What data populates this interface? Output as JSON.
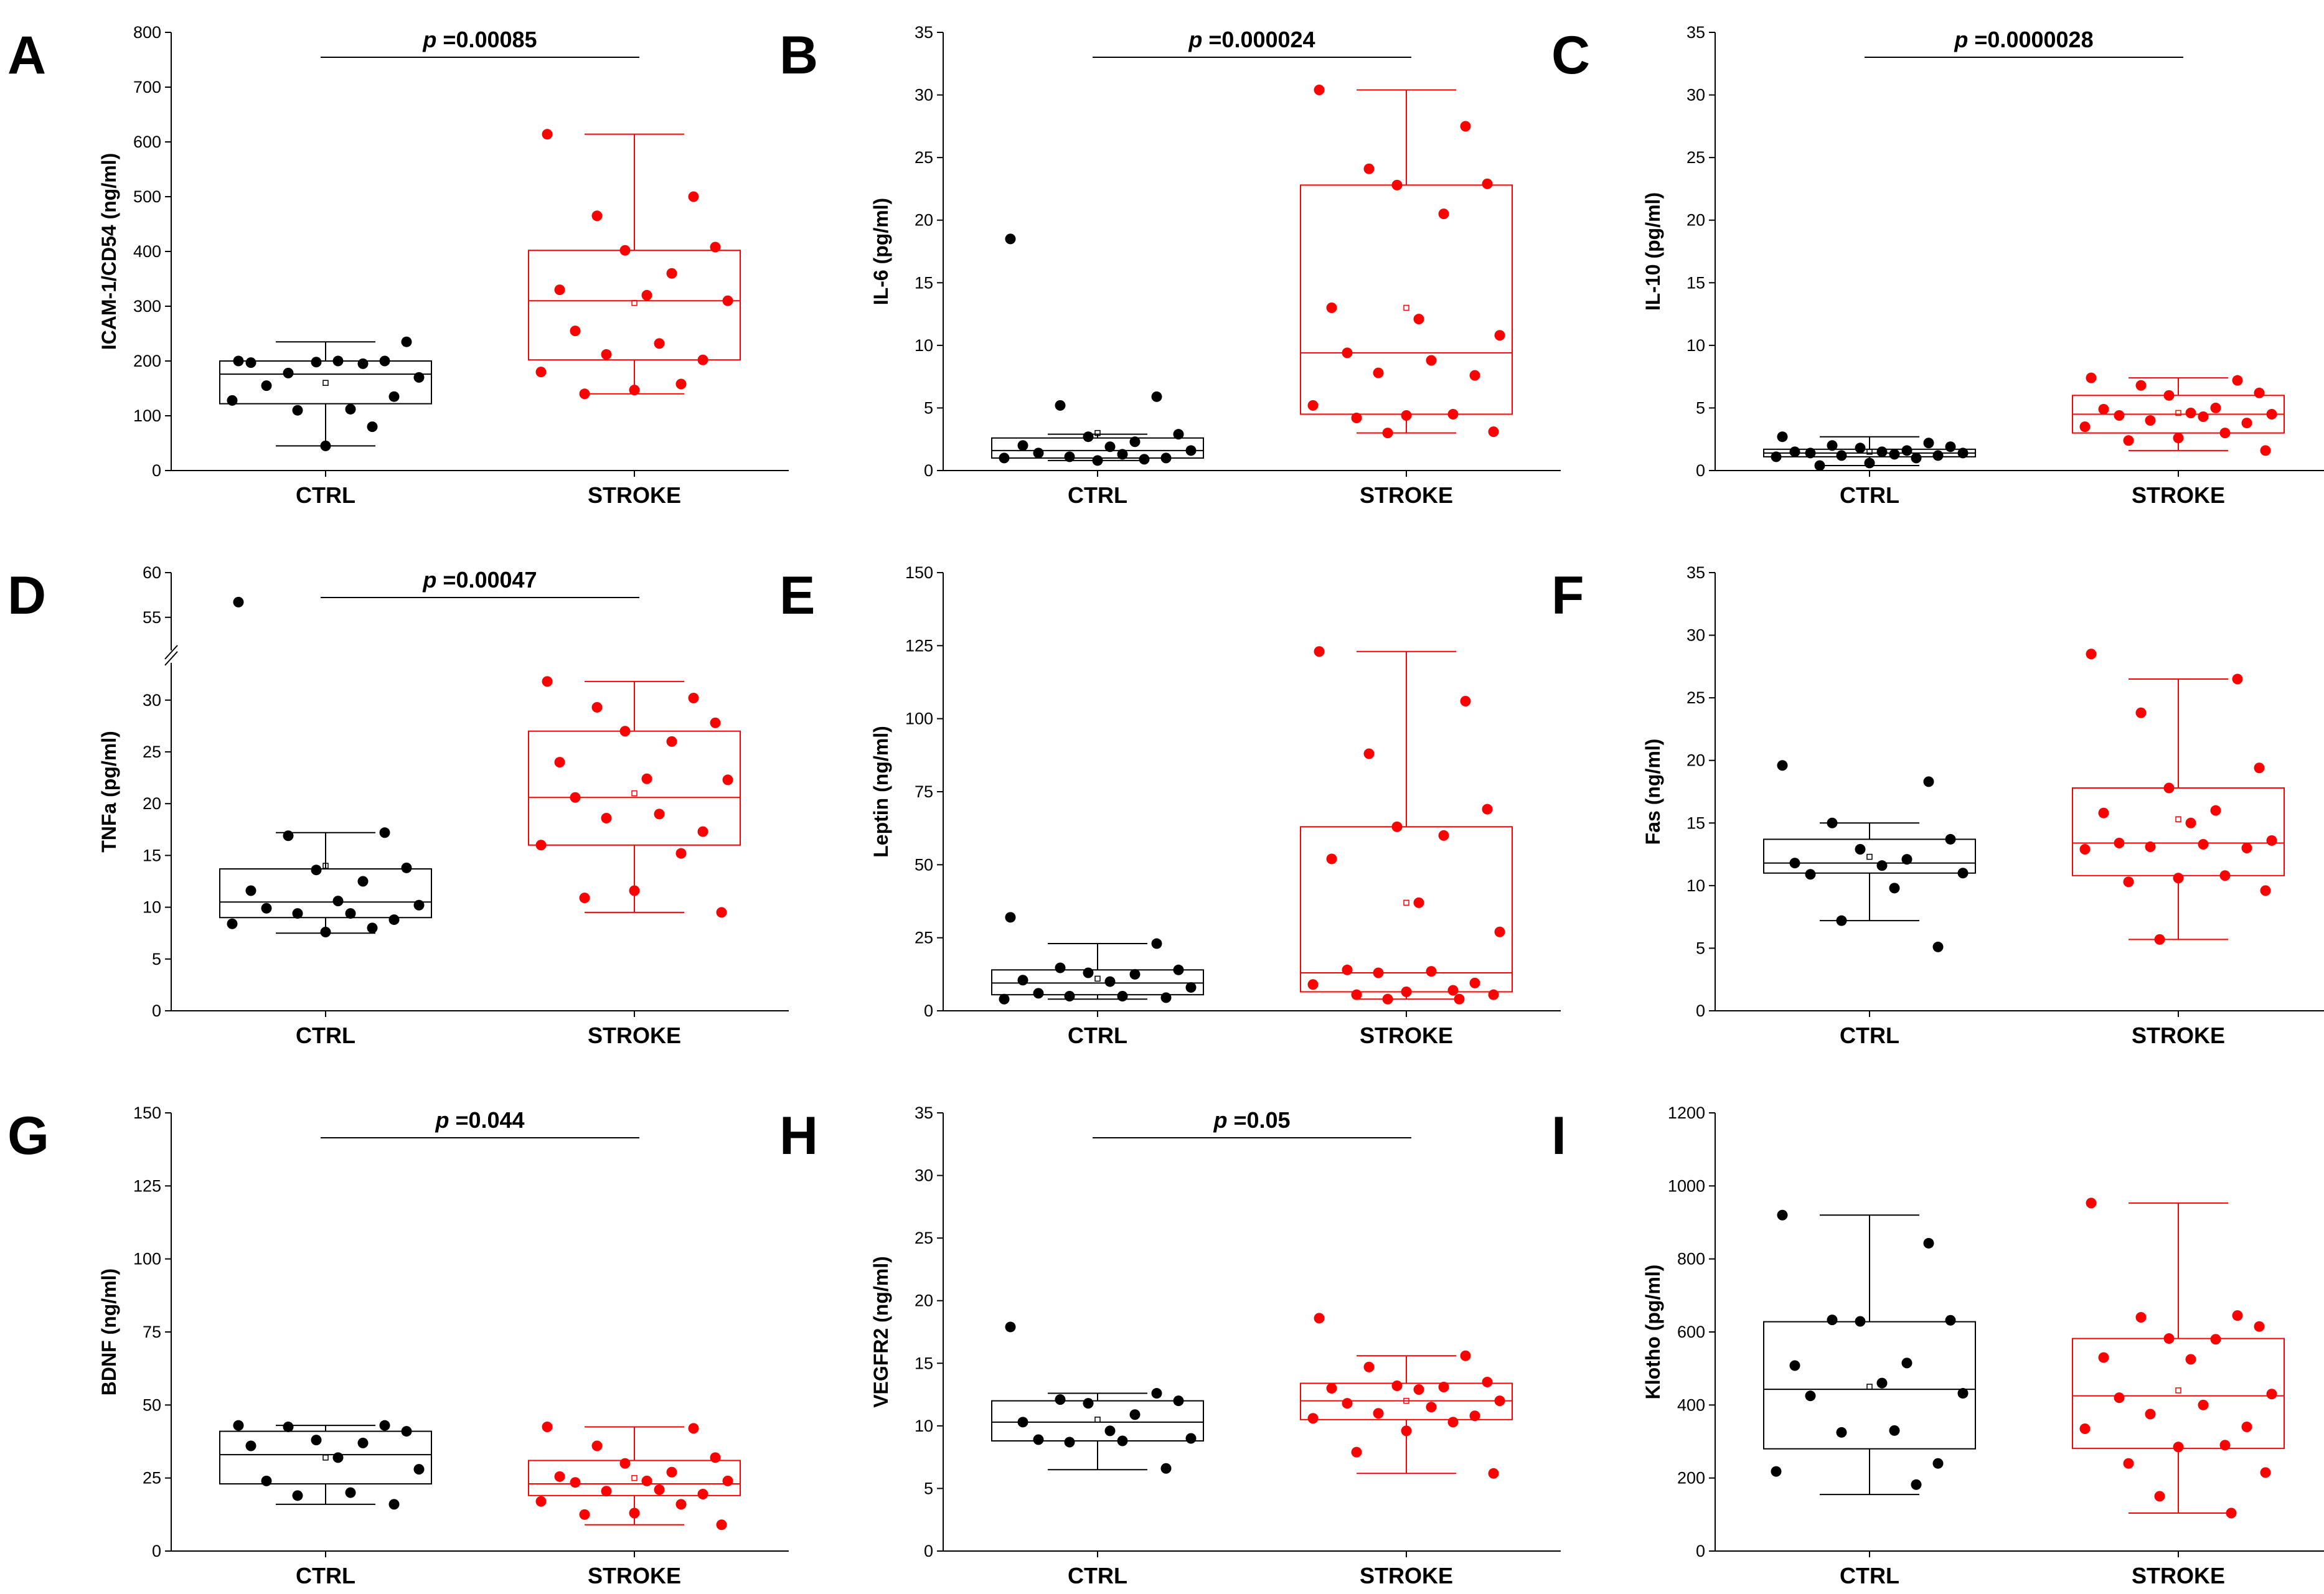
{
  "figure": {
    "colors": {
      "ctrl": "#000000",
      "stroke": "#ff0000"
    }
  },
  "chart_data": [
    {
      "panel": "A",
      "type": "box",
      "ylabel": "ICAM-1/CD54 (ng/ml)",
      "ylim": [
        0,
        800
      ],
      "yticks": [
        0,
        100,
        200,
        300,
        400,
        500,
        600,
        700,
        800
      ],
      "categories": [
        "CTRL",
        "STROKE"
      ],
      "p_label": "p",
      "p_value": "=0.00085",
      "groups": [
        {
          "name": "CTRL",
          "color": "#000000",
          "whisker_low": 45,
          "q1": 122,
          "median": 176,
          "q3": 200,
          "whisker_high": 235,
          "mean": 160,
          "points": [
            200,
            200,
            178,
            235,
            198,
            195,
            197,
            200,
            170,
            155,
            112,
            110,
            135,
            128,
            80,
            45
          ]
        },
        {
          "name": "STROKE",
          "color": "#ff0000",
          "whisker_low": 140,
          "q1": 202,
          "median": 310,
          "q3": 402,
          "whisker_high": 614,
          "mean": 306,
          "points": [
            614,
            500,
            465,
            408,
            402,
            360,
            330,
            320,
            310,
            255,
            232,
            212,
            202,
            180,
            158,
            147,
            140
          ]
        }
      ]
    },
    {
      "panel": "B",
      "type": "box",
      "ylabel": "IL-6 (pg/ml)",
      "ylim": [
        0,
        35
      ],
      "yticks": [
        0,
        5,
        10,
        15,
        20,
        25,
        30,
        35
      ],
      "categories": [
        "CTRL",
        "STROKE"
      ],
      "p_label": "p",
      "p_value": "=0.000024",
      "groups": [
        {
          "name": "CTRL",
          "color": "#000000",
          "whisker_low": 0.8,
          "q1": 1.0,
          "median": 1.6,
          "q3": 2.6,
          "whisker_high": 2.9,
          "mean": 3.0,
          "points": [
            18.5,
            5.9,
            5.2,
            2.9,
            2.7,
            2.3,
            2.0,
            1.9,
            1.6,
            1.4,
            1.3,
            1.1,
            1.0,
            1.0,
            0.9,
            0.8
          ]
        },
        {
          "name": "STROKE",
          "color": "#ff0000",
          "whisker_low": 3.0,
          "q1": 4.5,
          "median": 9.4,
          "q3": 22.8,
          "whisker_high": 30.4,
          "mean": 13.0,
          "points": [
            30.4,
            27.5,
            24.1,
            22.9,
            22.8,
            20.5,
            13.0,
            12.1,
            10.8,
            9.4,
            8.8,
            7.8,
            7.6,
            5.2,
            4.5,
            4.4,
            4.2,
            3.1,
            3.0
          ]
        }
      ]
    },
    {
      "panel": "C",
      "type": "box",
      "ylabel": "IL-10 (pg/ml)",
      "ylim": [
        0,
        35
      ],
      "yticks": [
        0,
        5,
        10,
        15,
        20,
        25,
        30,
        35
      ],
      "categories": [
        "CTRL",
        "STROKE"
      ],
      "p_label": "p",
      "p_value": "=0.0000028",
      "groups": [
        {
          "name": "CTRL",
          "color": "#000000",
          "whisker_low": 0.4,
          "q1": 1.1,
          "median": 1.4,
          "q3": 1.7,
          "whisker_high": 2.7,
          "mean": 1.5,
          "points": [
            2.7,
            2.2,
            2.0,
            1.9,
            1.8,
            1.6,
            1.5,
            1.5,
            1.4,
            1.4,
            1.3,
            1.2,
            1.2,
            1.1,
            1.0,
            0.6,
            0.4
          ]
        },
        {
          "name": "STROKE",
          "color": "#ff0000",
          "whisker_low": 1.6,
          "q1": 3.0,
          "median": 4.5,
          "q3": 6.0,
          "whisker_high": 7.4,
          "mean": 4.6,
          "points": [
            7.4,
            7.2,
            6.8,
            6.2,
            6.0,
            5.0,
            4.9,
            4.6,
            4.5,
            4.4,
            4.3,
            4.0,
            3.8,
            3.5,
            3.0,
            2.6,
            2.4,
            1.6
          ]
        }
      ]
    },
    {
      "panel": "D",
      "type": "box",
      "ylabel": "TNFa (pg/ml)",
      "ylim": [
        0,
        60
      ],
      "yticks": [
        0,
        5,
        10,
        15,
        20,
        25,
        30,
        55,
        60
      ],
      "axis_break": [
        33,
        52
      ],
      "categories": [
        "CTRL",
        "STROKE"
      ],
      "p_label": "p",
      "p_value": "=0.00047",
      "groups": [
        {
          "name": "CTRL",
          "color": "#000000",
          "whisker_low": 7.5,
          "q1": 9.0,
          "median": 10.5,
          "q3": 13.7,
          "whisker_high": 17.2,
          "mean": 14.0,
          "points": [
            56.7,
            17.2,
            16.9,
            13.8,
            13.6,
            12.5,
            11.6,
            10.6,
            10.2,
            9.9,
            9.4,
            9.4,
            8.8,
            8.4,
            8.0,
            7.6
          ]
        },
        {
          "name": "STROKE",
          "color": "#ff0000",
          "whisker_low": 9.5,
          "q1": 16.0,
          "median": 20.6,
          "q3": 27.0,
          "whisker_high": 31.8,
          "mean": 21.0,
          "points": [
            31.8,
            30.2,
            29.3,
            27.8,
            27.0,
            26.0,
            24.0,
            22.4,
            22.3,
            20.6,
            19.0,
            18.6,
            17.3,
            16.0,
            15.2,
            11.6,
            10.9,
            9.5
          ]
        }
      ]
    },
    {
      "panel": "E",
      "type": "box",
      "ylabel": "Leptin (ng/ml)",
      "ylim": [
        0,
        150
      ],
      "yticks": [
        0,
        25,
        50,
        75,
        100,
        125,
        150
      ],
      "categories": [
        "CTRL",
        "STROKE"
      ],
      "p_label": "",
      "p_value": "",
      "groups": [
        {
          "name": "CTRL",
          "color": "#000000",
          "whisker_low": 4,
          "q1": 5.5,
          "median": 9.5,
          "q3": 14,
          "whisker_high": 23,
          "mean": 11,
          "points": [
            32,
            23,
            14.7,
            14,
            13,
            12.5,
            10.5,
            10,
            8,
            6,
            5,
            5,
            4.5,
            4
          ]
        },
        {
          "name": "STROKE",
          "color": "#ff0000",
          "whisker_low": 4,
          "q1": 6.5,
          "median": 13,
          "q3": 63,
          "whisker_high": 123,
          "mean": 37,
          "points": [
            123,
            106,
            88,
            69,
            63,
            60,
            52,
            37,
            27,
            14,
            13.5,
            13,
            9.5,
            9,
            7,
            6.5,
            5.5,
            5.5,
            4,
            4
          ]
        }
      ]
    },
    {
      "panel": "F",
      "type": "box",
      "ylabel": "Fas (ng/ml)",
      "ylim": [
        0,
        35
      ],
      "yticks": [
        0,
        5,
        10,
        15,
        20,
        25,
        30,
        35
      ],
      "categories": [
        "CTRL",
        "STROKE"
      ],
      "p_label": "",
      "p_value": "",
      "groups": [
        {
          "name": "CTRL",
          "color": "#000000",
          "whisker_low": 7.2,
          "q1": 11.0,
          "median": 11.8,
          "q3": 13.7,
          "whisker_high": 15.0,
          "mean": 12.3,
          "points": [
            19.6,
            18.3,
            15.0,
            13.7,
            12.9,
            12.1,
            11.8,
            11.6,
            11.0,
            10.9,
            9.8,
            7.2,
            5.1
          ]
        },
        {
          "name": "STROKE",
          "color": "#ff0000",
          "whisker_low": 5.7,
          "q1": 10.8,
          "median": 13.4,
          "q3": 17.8,
          "whisker_high": 26.5,
          "mean": 15.3,
          "points": [
            28.5,
            26.5,
            23.8,
            19.4,
            17.8,
            16.0,
            15.8,
            15.0,
            13.6,
            13.4,
            13.3,
            13.1,
            13.0,
            12.9,
            10.8,
            10.6,
            10.3,
            9.6,
            5.7
          ]
        }
      ]
    },
    {
      "panel": "G",
      "type": "box",
      "ylabel": "BDNF (ng/ml)",
      "ylim": [
        0,
        150
      ],
      "yticks": [
        0,
        25,
        50,
        75,
        100,
        125,
        150
      ],
      "categories": [
        "CTRL",
        "STROKE"
      ],
      "p_label": "p",
      "p_value": "=0.044",
      "groups": [
        {
          "name": "CTRL",
          "color": "#000000",
          "whisker_low": 16,
          "q1": 23,
          "median": 33,
          "q3": 41,
          "whisker_high": 43,
          "mean": 32,
          "points": [
            43,
            43,
            42.5,
            41,
            38,
            37,
            36,
            32,
            28,
            24,
            20,
            19,
            16
          ]
        },
        {
          "name": "STROKE",
          "color": "#ff0000",
          "whisker_low": 9,
          "q1": 19,
          "median": 23,
          "q3": 31,
          "whisker_high": 42.5,
          "mean": 25,
          "points": [
            42.5,
            42,
            36,
            32,
            30,
            27,
            25.5,
            24,
            24,
            23.5,
            21,
            20.5,
            19.5,
            17,
            16,
            13,
            12.5,
            9
          ]
        }
      ]
    },
    {
      "panel": "H",
      "type": "box",
      "ylabel": "VEGFR2 (ng/ml)",
      "ylim": [
        0,
        35
      ],
      "yticks": [
        0,
        5,
        10,
        15,
        20,
        25,
        30,
        35
      ],
      "categories": [
        "CTRL",
        "STROKE"
      ],
      "p_label": "p",
      "p_value": "=0.05",
      "groups": [
        {
          "name": "CTRL",
          "color": "#000000",
          "whisker_low": 6.5,
          "q1": 8.8,
          "median": 10.3,
          "q3": 12.0,
          "whisker_high": 12.6,
          "mean": 10.5,
          "points": [
            17.9,
            12.6,
            12.1,
            12.0,
            11.8,
            10.9,
            10.3,
            9.6,
            9.0,
            8.9,
            8.8,
            8.7,
            6.6
          ]
        },
        {
          "name": "STROKE",
          "color": "#ff0000",
          "whisker_low": 6.2,
          "q1": 10.5,
          "median": 12.0,
          "q3": 13.4,
          "whisker_high": 15.6,
          "mean": 12.0,
          "points": [
            18.6,
            15.6,
            14.7,
            13.5,
            13.2,
            13.1,
            13.0,
            12.9,
            12.0,
            11.8,
            11.5,
            11.0,
            10.8,
            10.6,
            10.3,
            9.6,
            7.9,
            6.2
          ]
        }
      ]
    },
    {
      "panel": "I",
      "type": "box",
      "ylabel": "Klotho (pg/ml)",
      "ylim": [
        0,
        1200
      ],
      "yticks": [
        0,
        200,
        400,
        600,
        800,
        1000,
        1200
      ],
      "categories": [
        "CTRL",
        "STROKE"
      ],
      "p_label": "",
      "p_value": "",
      "groups": [
        {
          "name": "CTRL",
          "color": "#000000",
          "whisker_low": 155,
          "q1": 280,
          "median": 443,
          "q3": 628,
          "whisker_high": 920,
          "mean": 450,
          "points": [
            920,
            843,
            633,
            632,
            629,
            515,
            508,
            460,
            432,
            425,
            330,
            325,
            240,
            218,
            182
          ]
        },
        {
          "name": "STROKE",
          "color": "#ff0000",
          "whisker_low": 104,
          "q1": 281,
          "median": 425,
          "q3": 582,
          "whisker_high": 953,
          "mean": 440,
          "points": [
            953,
            645,
            640,
            615,
            582,
            580,
            530,
            525,
            430,
            420,
            400,
            375,
            340,
            335,
            290,
            285,
            240,
            215,
            150,
            104
          ]
        }
      ]
    }
  ]
}
